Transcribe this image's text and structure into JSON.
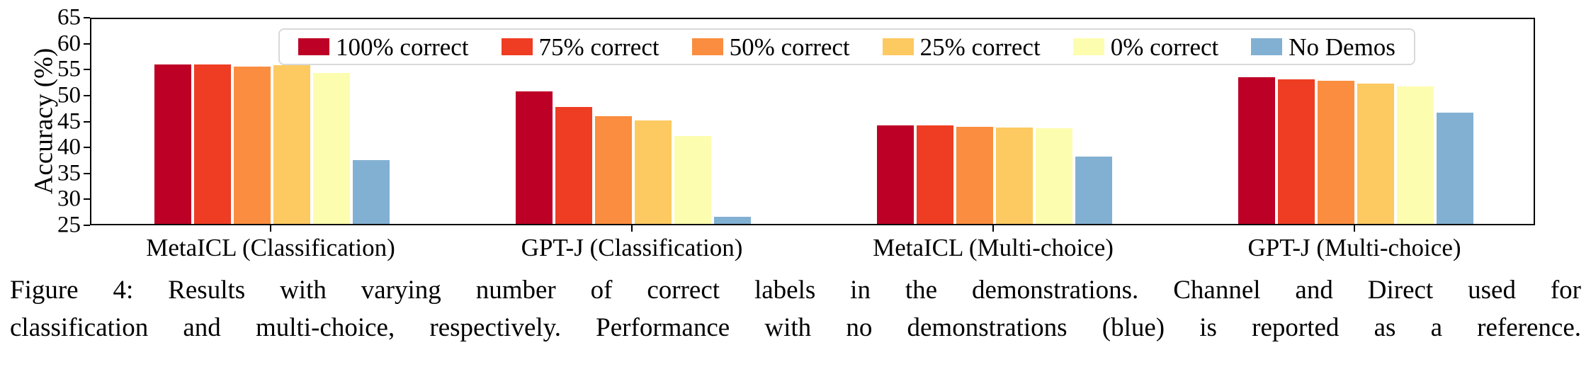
{
  "figure": {
    "caption_line1": "Figure 4: Results with varying number of correct labels in the demonstrations. Channel and Direct used for",
    "caption_line2": "classification and multi-choice, respectively. Performance with no demonstrations (blue) is reported as a reference."
  },
  "chart_data": {
    "type": "bar",
    "title": "",
    "xlabel": "",
    "ylabel": "Accuracy (%)",
    "ylim": [
      25,
      65
    ],
    "yticks": [
      25,
      30,
      35,
      40,
      45,
      50,
      55,
      60,
      65
    ],
    "grid": false,
    "legend_position": "top-center-inside",
    "categories": [
      "MetaICL (Classification)",
      "GPT-J (Classification)",
      "MetaICL (Multi-choice)",
      "GPT-J (Multi-choice)"
    ],
    "series": [
      {
        "name": "100% correct",
        "color": "#bd0026",
        "values": [
          55.7,
          50.5,
          44.0,
          53.2
        ]
      },
      {
        "name": "75% correct",
        "color": "#ee3d23",
        "values": [
          55.7,
          47.5,
          44.0,
          52.9
        ]
      },
      {
        "name": "50% correct",
        "color": "#fa8d3f",
        "values": [
          55.3,
          45.7,
          43.7,
          52.6
        ]
      },
      {
        "name": "25% correct",
        "color": "#fdc961",
        "values": [
          55.6,
          45.0,
          43.6,
          52.1
        ]
      },
      {
        "name": "0% correct",
        "color": "#fdfdb0",
        "values": [
          54.1,
          41.9,
          43.5,
          51.5
        ]
      },
      {
        "name": "No Demos",
        "color": "#82b0d2",
        "values": [
          37.3,
          26.4,
          38.0,
          46.5
        ]
      }
    ]
  }
}
